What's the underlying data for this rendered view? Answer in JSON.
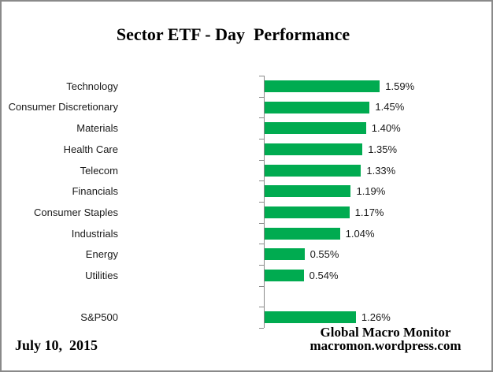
{
  "chart_data": {
    "type": "bar",
    "orientation": "horizontal",
    "title": "Sector ETF - Day  Performance",
    "categories": [
      "Technology",
      "Consumer Discretionary",
      "Materials",
      "Health Care",
      "Telecom",
      "Financials",
      "Consumer Staples",
      "Industrials",
      "Energy",
      "Utilities",
      "",
      "S&P500"
    ],
    "values": [
      1.59,
      1.45,
      1.4,
      1.35,
      1.33,
      1.19,
      1.17,
      1.04,
      0.55,
      0.54,
      null,
      1.26
    ],
    "value_labels": [
      "1.59%",
      "1.45%",
      "1.40%",
      "1.35%",
      "1.33%",
      "1.19%",
      "1.17%",
      "1.04%",
      "0.55%",
      "0.54%",
      "",
      "1.26%"
    ],
    "xlabel": "",
    "ylabel": "",
    "xlim": [
      0,
      2.0
    ],
    "grid": false,
    "legend": false,
    "bar_color": "#00ab50",
    "axis_color": "#8a8a8a",
    "label_color": "#1a1a1a"
  },
  "footer": {
    "date": "July 10,  2015",
    "credit_line1": "Global Macro Monitor",
    "credit_line2": "macromon.wordpress.com"
  }
}
